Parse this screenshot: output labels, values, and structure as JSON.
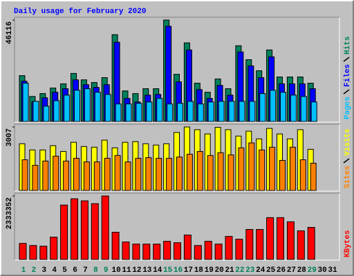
{
  "chart_data": [
    {
      "type": "bar",
      "title": "Daily usage for February 2020",
      "ylim": [
        0,
        46116
      ],
      "yticks": [
        46116
      ],
      "series": [
        {
          "name": "Hits",
          "color": "#00805C",
          "values": [
            21000,
            11600,
            12900,
            15400,
            17300,
            22000,
            19100,
            17900,
            20100,
            39500,
            14100,
            12900,
            15100,
            15100,
            46116,
            21600,
            35800,
            17600,
            13500,
            19500,
            15100,
            34500,
            28200,
            23200,
            32600,
            20400,
            20400,
            20400,
            17600,
            null,
            null
          ]
        },
        {
          "name": "Files",
          "color": "#0000FF",
          "values": [
            18500,
            9100,
            11000,
            13500,
            15100,
            19100,
            16900,
            15700,
            16900,
            36100,
            10700,
            9100,
            12200,
            12500,
            43300,
            18200,
            32600,
            14700,
            10700,
            16600,
            12200,
            31700,
            25400,
            20100,
            29500,
            17300,
            17300,
            17300,
            15100,
            null,
            null
          ]
        },
        {
          "name": "Pages",
          "color": "#00C0FF",
          "values": [
            17600,
            9400,
            7200,
            9700,
            12200,
            14400,
            15100,
            13500,
            12500,
            8200,
            8200,
            8500,
            9100,
            10700,
            8200,
            8500,
            9400,
            8200,
            9100,
            9400,
            9400,
            9400,
            9400,
            12900,
            14400,
            13500,
            12200,
            11600,
            9100,
            null,
            null
          ]
        }
      ]
    },
    {
      "type": "bar",
      "ylim": [
        0,
        3007
      ],
      "yticks": [
        3007
      ],
      "series": [
        {
          "name": "Visits",
          "color": "#FFFF00",
          "values": [
            2220,
            1930,
            1930,
            2130,
            1860,
            2290,
            2090,
            2060,
            2390,
            2030,
            2290,
            2320,
            2220,
            2160,
            2220,
            2750,
            3007,
            2880,
            2680,
            2990,
            2880,
            2580,
            2810,
            2450,
            2940,
            2680,
            2450,
            2880,
            1960,
            null,
            null
          ]
        },
        {
          "name": "Sites",
          "color": "#FF8000",
          "values": [
            1470,
            1210,
            1410,
            1640,
            1410,
            1540,
            1370,
            1370,
            1540,
            1670,
            1370,
            1540,
            1570,
            1540,
            1540,
            1600,
            1730,
            1860,
            1670,
            1800,
            1700,
            2030,
            2260,
            1930,
            2060,
            1440,
            2060,
            1470,
            1310,
            null,
            null
          ]
        }
      ]
    },
    {
      "type": "bar",
      "ylim": [
        0,
        2333352
      ],
      "yticks": [
        2333352
      ],
      "categories": [
        "1",
        "2",
        "3",
        "4",
        "5",
        "6",
        "7",
        "8",
        "9",
        "10",
        "11",
        "12",
        "13",
        "14",
        "15",
        "16",
        "17",
        "18",
        "19",
        "20",
        "21",
        "22",
        "23",
        "24",
        "25",
        "26",
        "27",
        "28",
        "29",
        "30",
        "31"
      ],
      "category_colors": [
        "#00805C",
        "#00805C",
        "#000000",
        "#000000",
        "#000000",
        "#000000",
        "#000000",
        "#00805C",
        "#00805C",
        "#000000",
        "#000000",
        "#000000",
        "#000000",
        "#000000",
        "#00805C",
        "#00805C",
        "#000000",
        "#000000",
        "#000000",
        "#000000",
        "#000000",
        "#00805C",
        "#00805C",
        "#000000",
        "#000000",
        "#000000",
        "#000000",
        "#000000",
        "#00805C",
        "#000000",
        "#000000"
      ],
      "series": [
        {
          "name": "KBytes",
          "color": "#FF0000",
          "values": [
            608700,
            532600,
            507200,
            837000,
            2003600,
            2231900,
            2155800,
            2054300,
            2333352,
            1014500,
            659400,
            583300,
            583300,
            583300,
            684800,
            634100,
            913000,
            532600,
            684800,
            583300,
            862300,
            760900,
            1115900,
            1115900,
            1547100,
            1547100,
            1394900,
            1065200,
            1192000,
            null,
            null
          ]
        }
      ]
    }
  ]
}
